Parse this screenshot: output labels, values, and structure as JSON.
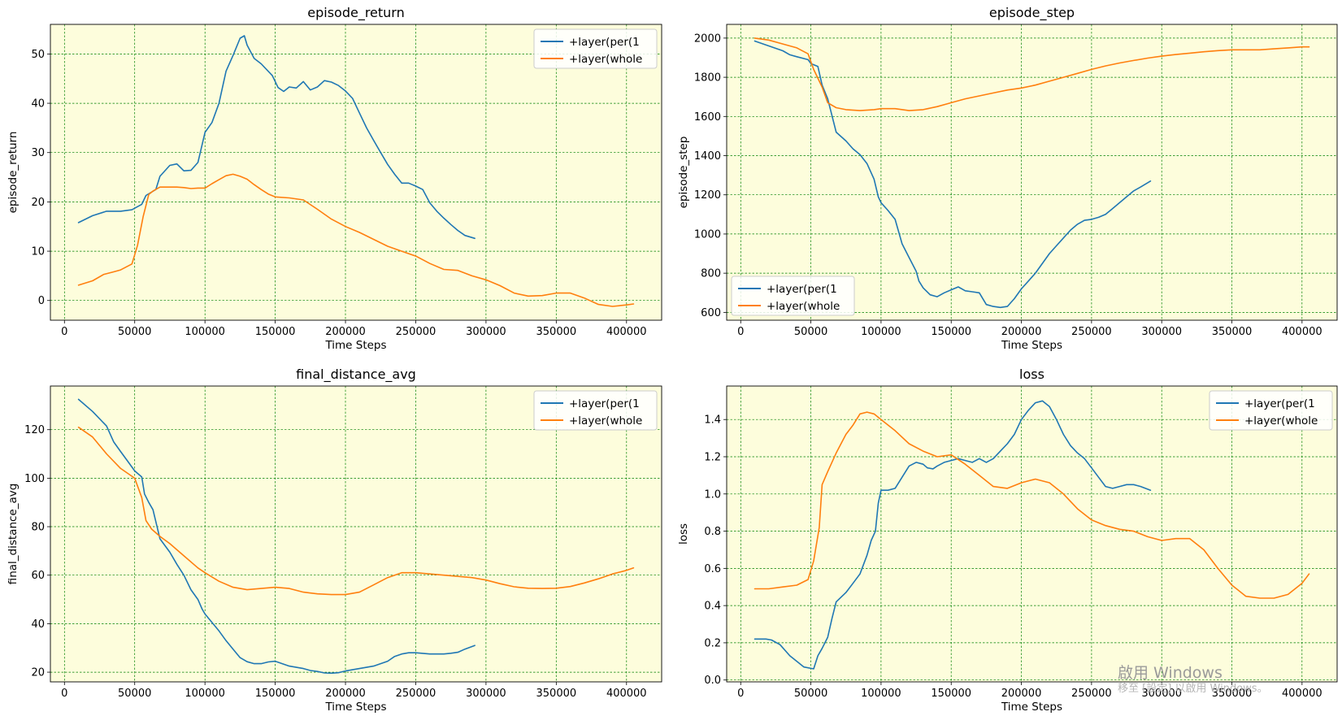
{
  "watermark": {
    "line1": "啟用 Windows",
    "line2": "移至 [設定] 以啟用 Windows。"
  },
  "colors": {
    "plot_background": "#fdfddc",
    "grid": "#008000",
    "series_blue": "#1f77b4",
    "series_orange": "#ff7f0e"
  },
  "chart_data": [
    {
      "type": "line",
      "title": "episode_return",
      "xlabel": "Time Steps",
      "ylabel": "episode_return",
      "xlim": [
        -10000,
        425000
      ],
      "ylim": [
        -4,
        56
      ],
      "xticks": [
        0,
        50000,
        100000,
        150000,
        200000,
        250000,
        300000,
        350000,
        400000
      ],
      "yticks": [
        0,
        10,
        20,
        30,
        40,
        50
      ],
      "grid": true,
      "legend_position": "top-right",
      "series": [
        {
          "name": "+layer(per(1",
          "color": "#1f77b4",
          "x": [
            10000,
            20000,
            30000,
            40000,
            48000,
            55000,
            58000,
            65000,
            68000,
            75000,
            80000,
            85000,
            90000,
            95000,
            100000,
            105000,
            110000,
            115000,
            120000,
            125000,
            128000,
            130000,
            135000,
            140000,
            148000,
            152000,
            156000,
            160000,
            165000,
            170000,
            175000,
            180000,
            185000,
            190000,
            195000,
            200000,
            205000,
            210000,
            215000,
            220000,
            225000,
            230000,
            235000,
            240000,
            245000,
            250000,
            255000,
            260000,
            265000,
            270000,
            275000,
            280000,
            285000,
            292000
          ],
          "y": [
            15.8,
            17.2,
            18.1,
            18.1,
            18.4,
            19.5,
            21.3,
            22.5,
            25.2,
            27.4,
            27.7,
            26.3,
            26.4,
            28,
            34.1,
            36.1,
            40,
            46.5,
            49.7,
            53.2,
            53.7,
            51.8,
            49.1,
            48,
            45.6,
            43.2,
            42.4,
            43.3,
            43.1,
            44.4,
            42.7,
            43.3,
            44.6,
            44.3,
            43.6,
            42.5,
            41,
            38,
            35,
            32.5,
            30,
            27.6,
            25.6,
            23.8,
            23.8,
            23.2,
            22.5,
            19.8,
            18.1,
            16.7,
            15.4,
            14.2,
            13.2,
            12.6
          ]
        },
        {
          "name": "+layer(whole",
          "color": "#ff7f0e",
          "x": [
            10000,
            20000,
            28000,
            35000,
            40000,
            48000,
            52000,
            56000,
            60000,
            63000,
            68000,
            75000,
            80000,
            85000,
            90000,
            95000,
            100000,
            105000,
            110000,
            115000,
            120000,
            125000,
            130000,
            135000,
            140000,
            145000,
            150000,
            160000,
            170000,
            180000,
            190000,
            200000,
            210000,
            220000,
            230000,
            240000,
            250000,
            260000,
            270000,
            280000,
            290000,
            300000,
            310000,
            320000,
            330000,
            340000,
            350000,
            360000,
            370000,
            380000,
            390000,
            400000,
            405000
          ],
          "y": [
            3.1,
            4,
            5.3,
            5.8,
            6.2,
            7.4,
            11.2,
            17,
            21.5,
            22.2,
            23,
            23,
            23,
            22.9,
            22.7,
            22.8,
            22.8,
            23.7,
            24.5,
            25.3,
            25.6,
            25.2,
            24.6,
            23.5,
            22.5,
            21.6,
            21,
            20.8,
            20.4,
            18.5,
            16.5,
            15,
            13.8,
            12.4,
            11,
            10,
            9,
            7.5,
            6.3,
            6.1,
            5,
            4.2,
            3,
            1.5,
            0.9,
            1,
            1.5,
            1.5,
            0.5,
            -0.8,
            -1.2,
            -0.9,
            -0.7
          ]
        }
      ]
    },
    {
      "type": "line",
      "title": "episode_step",
      "xlabel": "Time Steps",
      "ylabel": "episode_step",
      "xlim": [
        -10000,
        425000
      ],
      "ylim": [
        560,
        2070
      ],
      "xticks": [
        0,
        50000,
        100000,
        150000,
        200000,
        250000,
        300000,
        350000,
        400000
      ],
      "yticks": [
        600,
        800,
        1000,
        1200,
        1400,
        1600,
        1800,
        2000
      ],
      "grid": true,
      "legend_position": "bottom-left",
      "series": [
        {
          "name": "+layer(per(1",
          "color": "#1f77b4",
          "x": [
            10000,
            20000,
            30000,
            35000,
            40000,
            48000,
            50000,
            55000,
            58000,
            62000,
            68000,
            75000,
            80000,
            85000,
            90000,
            95000,
            98000,
            100000,
            105000,
            110000,
            115000,
            120000,
            125000,
            127000,
            130000,
            135000,
            140000,
            145000,
            150000,
            155000,
            160000,
            165000,
            170000,
            175000,
            180000,
            185000,
            190000,
            195000,
            200000,
            205000,
            210000,
            215000,
            220000,
            225000,
            230000,
            235000,
            240000,
            245000,
            250000,
            255000,
            260000,
            265000,
            270000,
            275000,
            280000,
            285000,
            292000
          ],
          "y": [
            1985,
            1960,
            1935,
            1915,
            1905,
            1890,
            1870,
            1855,
            1760,
            1690,
            1520,
            1475,
            1435,
            1405,
            1360,
            1280,
            1190,
            1160,
            1120,
            1075,
            950,
            880,
            810,
            760,
            725,
            690,
            680,
            700,
            715,
            730,
            710,
            705,
            700,
            640,
            630,
            625,
            630,
            670,
            720,
            760,
            800,
            850,
            900,
            940,
            980,
            1020,
            1050,
            1070,
            1075,
            1085,
            1100,
            1130,
            1160,
            1190,
            1220,
            1240,
            1270
          ]
        },
        {
          "name": "+layer(whole",
          "color": "#ff7f0e",
          "x": [
            10000,
            20000,
            30000,
            40000,
            48000,
            52000,
            58000,
            62000,
            68000,
            75000,
            85000,
            95000,
            100000,
            110000,
            120000,
            130000,
            140000,
            150000,
            160000,
            170000,
            180000,
            190000,
            200000,
            210000,
            220000,
            230000,
            240000,
            250000,
            260000,
            270000,
            280000,
            290000,
            300000,
            310000,
            320000,
            330000,
            340000,
            350000,
            360000,
            370000,
            380000,
            390000,
            400000,
            405000
          ],
          "y": [
            2000,
            1990,
            1970,
            1950,
            1920,
            1840,
            1750,
            1670,
            1645,
            1635,
            1630,
            1635,
            1640,
            1640,
            1630,
            1635,
            1650,
            1670,
            1690,
            1705,
            1720,
            1735,
            1745,
            1760,
            1780,
            1800,
            1820,
            1840,
            1858,
            1873,
            1886,
            1898,
            1908,
            1916,
            1923,
            1930,
            1936,
            1940,
            1940,
            1940,
            1945,
            1950,
            1955,
            1955
          ]
        }
      ]
    },
    {
      "type": "line",
      "title": "final_distance_avg",
      "xlabel": "Time Steps",
      "ylabel": "final_distance_avg",
      "xlim": [
        -10000,
        425000
      ],
      "ylim": [
        16,
        138
      ],
      "xticks": [
        0,
        50000,
        100000,
        150000,
        200000,
        250000,
        300000,
        350000,
        400000
      ],
      "yticks": [
        20,
        40,
        60,
        80,
        100,
        120
      ],
      "grid": true,
      "legend_position": "top-right",
      "series": [
        {
          "name": "+layer(per(1",
          "color": "#1f77b4",
          "x": [
            10000,
            20000,
            30000,
            35000,
            40000,
            45000,
            50000,
            55000,
            57000,
            60000,
            63000,
            68000,
            75000,
            80000,
            85000,
            90000,
            95000,
            98000,
            100000,
            105000,
            110000,
            115000,
            120000,
            125000,
            130000,
            135000,
            140000,
            145000,
            150000,
            155000,
            160000,
            165000,
            170000,
            175000,
            180000,
            185000,
            190000,
            195000,
            200000,
            210000,
            220000,
            230000,
            235000,
            240000,
            245000,
            250000,
            260000,
            270000,
            275000,
            280000,
            285000,
            292000
          ],
          "y": [
            132.5,
            127.5,
            121.5,
            115,
            111,
            107,
            103,
            100.5,
            93.5,
            90,
            87,
            75,
            69.5,
            64.5,
            60,
            54,
            50,
            46,
            44,
            40.5,
            37,
            33,
            29.5,
            26,
            24.3,
            23.5,
            23.5,
            24.2,
            24.5,
            23.5,
            22.5,
            22,
            21.5,
            20.7,
            20.3,
            19.7,
            19.6,
            19.8,
            20.5,
            21.5,
            22.5,
            24.5,
            26.5,
            27.5,
            28,
            28,
            27.5,
            27.5,
            27.8,
            28.2,
            29.5,
            31
          ]
        },
        {
          "name": "+layer(whole",
          "color": "#ff7f0e",
          "x": [
            10000,
            20000,
            30000,
            40000,
            50000,
            55000,
            58000,
            62000,
            68000,
            75000,
            85000,
            95000,
            100000,
            110000,
            120000,
            130000,
            140000,
            150000,
            160000,
            170000,
            180000,
            190000,
            200000,
            210000,
            220000,
            230000,
            240000,
            250000,
            260000,
            270000,
            280000,
            290000,
            300000,
            310000,
            320000,
            330000,
            340000,
            350000,
            360000,
            370000,
            380000,
            390000,
            400000,
            405000
          ],
          "y": [
            121,
            117,
            110,
            104,
            100,
            92,
            82.5,
            79,
            76,
            73,
            68,
            63,
            61,
            57.5,
            55,
            54,
            54.5,
            55,
            54.5,
            53,
            52.3,
            52,
            52,
            53,
            56,
            59,
            61,
            61,
            60.5,
            60,
            59.5,
            59,
            58,
            56.5,
            55.2,
            54.6,
            54.5,
            54.6,
            55.3,
            56.8,
            58.5,
            60.5,
            62,
            63
          ]
        }
      ]
    },
    {
      "type": "line",
      "title": "loss",
      "xlabel": "Time Steps",
      "ylabel": "loss",
      "xlim": [
        -10000,
        425000
      ],
      "ylim": [
        -0.01,
        1.58
      ],
      "xticks": [
        0,
        50000,
        100000,
        150000,
        200000,
        250000,
        300000,
        350000,
        400000
      ],
      "yticks": [
        0.0,
        0.2,
        0.4,
        0.6,
        0.8,
        1.0,
        1.2,
        1.4
      ],
      "grid": true,
      "legend_position": "top-right",
      "series": [
        {
          "name": "+layer(per(1",
          "color": "#1f77b4",
          "x": [
            10000,
            18000,
            22000,
            28000,
            35000,
            40000,
            45000,
            52000,
            55000,
            58000,
            62000,
            65000,
            68000,
            75000,
            80000,
            85000,
            90000,
            93000,
            96000,
            98000,
            100000,
            105000,
            110000,
            115000,
            120000,
            125000,
            130000,
            133000,
            137000,
            140000,
            145000,
            150000,
            155000,
            160000,
            165000,
            170000,
            175000,
            180000,
            185000,
            190000,
            195000,
            200000,
            205000,
            210000,
            215000,
            220000,
            225000,
            230000,
            235000,
            240000,
            245000,
            250000,
            255000,
            260000,
            265000,
            270000,
            275000,
            280000,
            285000,
            292000
          ],
          "y": [
            0.22,
            0.22,
            0.215,
            0.19,
            0.13,
            0.1,
            0.07,
            0.06,
            0.13,
            0.17,
            0.23,
            0.33,
            0.42,
            0.47,
            0.52,
            0.57,
            0.67,
            0.75,
            0.8,
            0.95,
            1.02,
            1.02,
            1.03,
            1.09,
            1.15,
            1.17,
            1.16,
            1.14,
            1.135,
            1.15,
            1.17,
            1.18,
            1.19,
            1.18,
            1.17,
            1.19,
            1.17,
            1.19,
            1.23,
            1.27,
            1.32,
            1.4,
            1.45,
            1.49,
            1.5,
            1.47,
            1.4,
            1.32,
            1.26,
            1.22,
            1.19,
            1.14,
            1.09,
            1.04,
            1.03,
            1.04,
            1.05,
            1.05,
            1.04,
            1.02
          ]
        },
        {
          "name": "+layer(whole",
          "color": "#ff7f0e",
          "x": [
            10000,
            20000,
            30000,
            40000,
            48000,
            52000,
            56000,
            58000,
            62000,
            68000,
            75000,
            80000,
            85000,
            90000,
            95000,
            100000,
            110000,
            120000,
            130000,
            140000,
            150000,
            160000,
            170000,
            180000,
            190000,
            200000,
            210000,
            220000,
            230000,
            240000,
            250000,
            260000,
            270000,
            280000,
            290000,
            300000,
            310000,
            320000,
            330000,
            340000,
            350000,
            360000,
            370000,
            380000,
            390000,
            400000,
            405000
          ],
          "y": [
            0.49,
            0.49,
            0.5,
            0.51,
            0.54,
            0.64,
            0.82,
            1.05,
            1.12,
            1.22,
            1.32,
            1.37,
            1.43,
            1.44,
            1.43,
            1.4,
            1.34,
            1.27,
            1.23,
            1.2,
            1.21,
            1.16,
            1.1,
            1.04,
            1.03,
            1.06,
            1.08,
            1.06,
            1.0,
            0.92,
            0.86,
            0.83,
            0.81,
            0.8,
            0.77,
            0.75,
            0.76,
            0.76,
            0.7,
            0.6,
            0.51,
            0.45,
            0.44,
            0.44,
            0.46,
            0.52,
            0.57
          ]
        }
      ]
    }
  ]
}
